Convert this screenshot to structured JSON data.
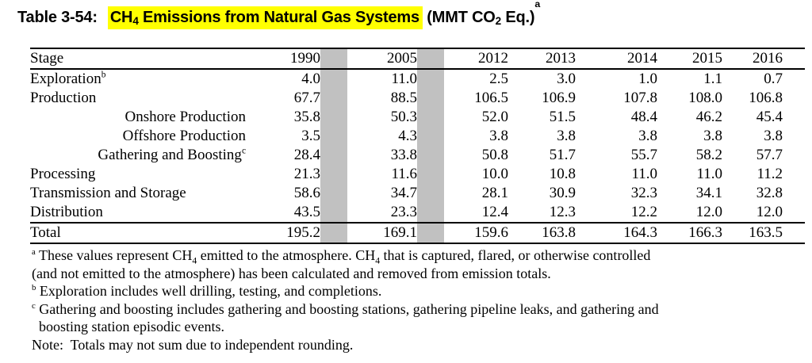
{
  "title": {
    "label": "Table 3-54:",
    "highlight": {
      "pre": "CH",
      "sub": "4",
      "post": " Emissions from Natural Gas Systems"
    },
    "unit": {
      "pre": " (MMT CO",
      "sub": "2",
      "post": " Eq.)",
      "sup": "a"
    }
  },
  "colors": {
    "highlight": "#ffff00",
    "spacer_gray": "#c1c1c1",
    "text": "#000000"
  },
  "table": {
    "columns": [
      "Stage",
      "1990",
      "2005",
      "2012",
      "2013",
      "2014",
      "2015",
      "2016"
    ],
    "rows": [
      {
        "label": "Exploration",
        "sup": "b",
        "bold": true,
        "indent": false,
        "values": [
          "4.0",
          "11.0",
          "2.5",
          "3.0",
          "1.0",
          "1.1",
          "0.7"
        ]
      },
      {
        "label": "Production",
        "sup": "",
        "bold": true,
        "indent": false,
        "values": [
          "67.7",
          "88.5",
          "106.5",
          "106.9",
          "107.8",
          "108.0",
          "106.8"
        ]
      },
      {
        "label": "Onshore Production",
        "sup": "",
        "bold": false,
        "indent": true,
        "values": [
          "35.8",
          "50.3",
          "52.0",
          "51.5",
          "48.4",
          "46.2",
          "45.4"
        ]
      },
      {
        "label": "Offshore Production",
        "sup": "",
        "bold": false,
        "indent": true,
        "values": [
          "3.5",
          "4.3",
          "3.8",
          "3.8",
          "3.8",
          "3.8",
          "3.8"
        ]
      },
      {
        "label": "Gathering and Boosting",
        "sup": "c",
        "bold": false,
        "indent": true,
        "values": [
          "28.4",
          "33.8",
          "50.8",
          "51.7",
          "55.7",
          "58.2",
          "57.7"
        ]
      },
      {
        "label": "Processing",
        "sup": "",
        "bold": true,
        "indent": false,
        "values": [
          "21.3",
          "11.6",
          "10.0",
          "10.8",
          "11.0",
          "11.0",
          "11.2"
        ]
      },
      {
        "label": "Transmission and Storage",
        "sup": "",
        "bold": true,
        "indent": false,
        "values": [
          "58.6",
          "34.7",
          "28.1",
          "30.9",
          "32.3",
          "34.1",
          "32.8"
        ]
      },
      {
        "label": "Distribution",
        "sup": "",
        "bold": true,
        "indent": false,
        "values": [
          "43.5",
          "23.3",
          "12.4",
          "12.3",
          "12.2",
          "12.0",
          "12.0"
        ]
      }
    ],
    "total": {
      "label": "Total",
      "sup": "",
      "bold": true,
      "indent": false,
      "values": [
        "195.2",
        "169.1",
        "159.6",
        "163.8",
        "164.3",
        "166.3",
        "163.5"
      ]
    }
  },
  "footnotes": [
    {
      "parts": [
        {
          "t": "a",
          "s": "sup"
        },
        {
          "t": " These values represent CH"
        },
        {
          "t": "4",
          "s": "sub"
        },
        {
          "t": " emitted to the atmosphere. CH"
        },
        {
          "t": "4",
          "s": "sub"
        },
        {
          "t": " that is captured, flared, or otherwise controlled"
        },
        {
          "s": "br"
        },
        {
          "t": "(and not emitted to the atmosphere) has been calculated and removed from emission totals."
        }
      ]
    },
    {
      "parts": [
        {
          "t": "b",
          "s": "sup"
        },
        {
          "t": " Exploration includes well drilling, testing, and completions."
        }
      ]
    },
    {
      "parts": [
        {
          "t": "c",
          "s": "sup"
        },
        {
          "t": " Gathering and boosting includes gathering and boosting stations, gathering pipeline leaks, and gathering and"
        },
        {
          "s": "br"
        },
        {
          "t": "  boosting station episodic events."
        }
      ]
    },
    {
      "parts": [
        {
          "t": "Note:  Totals may not sum due to independent rounding."
        }
      ]
    }
  ]
}
